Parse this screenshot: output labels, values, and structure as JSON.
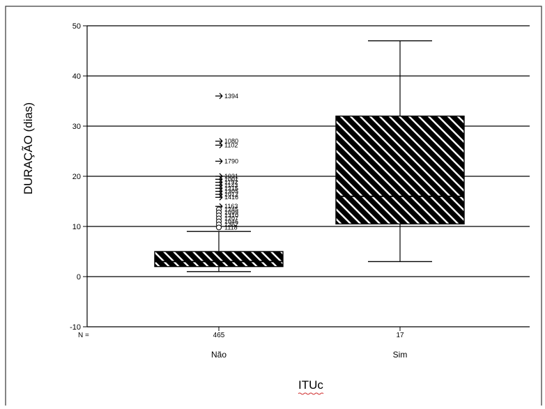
{
  "chart_data": {
    "type": "boxplot",
    "xlabel": "ITUc",
    "ylabel": "DURAÇÃO (dias)",
    "ylim": [
      -10,
      50
    ],
    "y_ticks": [
      -10,
      0,
      10,
      20,
      30,
      40,
      50
    ],
    "grid": true,
    "n_label": "N =",
    "categories": [
      "Não",
      "Sim"
    ],
    "groups": [
      {
        "category": "Não",
        "n": "465",
        "whisker_low": 1,
        "q1": 2,
        "median": 3,
        "q3": 5,
        "whisker_high": 9,
        "outliers": [
          {
            "value": 36,
            "label": "1394",
            "marker": "extreme"
          },
          {
            "value": 27,
            "label": "1080",
            "marker": "extreme"
          },
          {
            "value": 26.2,
            "label": "1102",
            "marker": "extreme"
          },
          {
            "value": 23,
            "label": "1790",
            "marker": "extreme"
          },
          {
            "value": 20,
            "label": "1031",
            "marker": "extreme"
          },
          {
            "value": 19.4,
            "label": "1001",
            "marker": "extreme"
          },
          {
            "value": 18.8,
            "label": "1192",
            "marker": "extreme"
          },
          {
            "value": 18.2,
            "label": "1143",
            "marker": "extreme"
          },
          {
            "value": 17.6,
            "label": "1215",
            "marker": "extreme"
          },
          {
            "value": 17,
            "label": "1305",
            "marker": "extreme"
          },
          {
            "value": 16.4,
            "label": "1012",
            "marker": "extreme"
          },
          {
            "value": 15.8,
            "label": "1416",
            "marker": "extreme"
          },
          {
            "value": 14,
            "label": "1163",
            "marker": "extreme"
          },
          {
            "value": 13.4,
            "label": "1245",
            "marker": "outlier"
          },
          {
            "value": 12.8,
            "label": "1099",
            "marker": "outlier"
          },
          {
            "value": 12.2,
            "label": "1310",
            "marker": "outlier"
          },
          {
            "value": 11.6,
            "label": "1207",
            "marker": "outlier"
          },
          {
            "value": 11,
            "label": "1046",
            "marker": "outlier"
          },
          {
            "value": 10.4,
            "label": "1362",
            "marker": "outlier"
          },
          {
            "value": 9.8,
            "label": "1118",
            "marker": "outlier"
          }
        ]
      },
      {
        "category": "Sim",
        "n": "17",
        "whisker_low": 3,
        "q1": 10.5,
        "median": 16,
        "q3": 32,
        "whisker_high": 47,
        "outliers": []
      }
    ]
  }
}
